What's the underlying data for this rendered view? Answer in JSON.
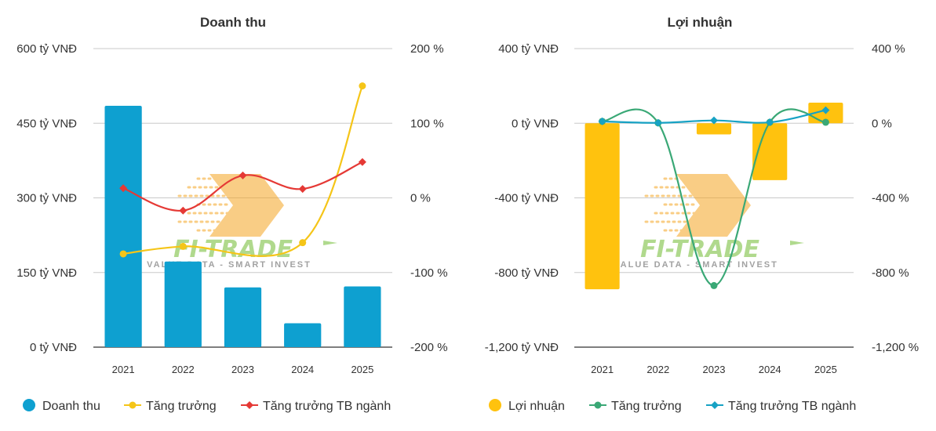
{
  "colors": {
    "revenue_bar": "#0ea0d0",
    "profit_bar": "#ffc20e",
    "growth_rev": "#f5c518",
    "industry_rev": "#e53935",
    "growth_profit": "#3aa876",
    "industry_profit": "#17a2c4",
    "grid": "#c8c8c8",
    "axis": "#333333",
    "watermark_green": "#7cc142",
    "watermark_orange": "#f5a623"
  },
  "watermark": {
    "brand": "FI-TRADE",
    "tagline": "VALUE DATA - SMART INVEST"
  },
  "chart_data": [
    {
      "type": "bar",
      "title": "Doanh thu",
      "categories": [
        "2021",
        "2022",
        "2023",
        "2024",
        "2025"
      ],
      "left_axis": {
        "range": [
          0,
          600
        ],
        "ticks": [
          0,
          150,
          300,
          450,
          600
        ],
        "tick_labels": [
          "0 tỷ VNĐ",
          "150 tỷ VNĐ",
          "300 tỷ VNĐ",
          "450 tỷ VNĐ",
          "600 tỷ VNĐ"
        ]
      },
      "right_axis": {
        "range": [
          -200,
          200
        ],
        "ticks": [
          -200,
          -100,
          0,
          100,
          200
        ],
        "tick_labels": [
          "-200 %",
          "-100 %",
          "0 %",
          "100 %",
          "200 %"
        ]
      },
      "series": [
        {
          "name": "Doanh thu",
          "kind": "bar",
          "axis": "left",
          "color_key": "revenue_bar",
          "values": [
            485,
            172,
            120,
            48,
            122
          ]
        },
        {
          "name": "Tăng trưởng",
          "kind": "line",
          "axis": "right",
          "color_key": "growth_rev",
          "marker": "circle",
          "values": [
            -75,
            -65,
            null,
            -60,
            150
          ]
        },
        {
          "name": "Tăng trưởng TB ngành",
          "kind": "line",
          "axis": "right",
          "color_key": "industry_rev",
          "marker": "diamond",
          "values": [
            13,
            -17,
            30,
            12,
            48
          ]
        }
      ],
      "legend_position": "bottom-left"
    },
    {
      "type": "bar",
      "title": "Lợi nhuận",
      "categories": [
        "2021",
        "2022",
        "2023",
        "2024",
        "2025"
      ],
      "left_axis": {
        "range": [
          -1200,
          400
        ],
        "ticks": [
          -1200,
          -800,
          -400,
          0,
          400
        ],
        "tick_labels": [
          "-1,200 tỷ VNĐ",
          "-800 tỷ VNĐ",
          "-400 tỷ VNĐ",
          "0 tỷ VNĐ",
          "400 tỷ VNĐ"
        ]
      },
      "right_axis": {
        "range": [
          -1200,
          400
        ],
        "ticks": [
          -1200,
          -800,
          -400,
          0,
          400
        ],
        "tick_labels": [
          "-1,200 %",
          "-800 %",
          "-400 %",
          "0 %",
          "400 %"
        ]
      },
      "series": [
        {
          "name": "Lợi nhuận",
          "kind": "bar",
          "axis": "left",
          "color_key": "profit_bar",
          "values": [
            -890,
            null,
            -60,
            -305,
            110
          ]
        },
        {
          "name": "Tăng trưởng",
          "kind": "line",
          "axis": "right",
          "color_key": "growth_profit",
          "marker": "circle",
          "values": [
            10,
            2,
            -870,
            5,
            5
          ]
        },
        {
          "name": "Tăng trưởng TB ngành",
          "kind": "line",
          "axis": "right",
          "color_key": "industry_profit",
          "marker": "diamond",
          "values": [
            10,
            2,
            15,
            5,
            70
          ]
        }
      ],
      "legend_position": "bottom-left"
    }
  ]
}
